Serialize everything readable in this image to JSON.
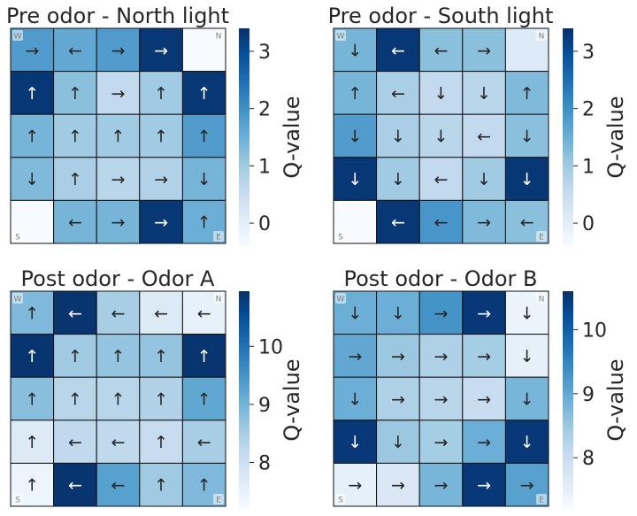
{
  "chart_data": [
    {
      "type": "heatmap",
      "title": "Pre odor - North light",
      "colormap": "Blues",
      "colorbar": {
        "label": "Q-value",
        "ticks": [
          0,
          1,
          2,
          3
        ],
        "range": [
          -0.4,
          3.4
        ]
      },
      "corner_labels": {
        "top_left": "W",
        "top_right": "N",
        "bottom_left": "S",
        "bottom_right": "E"
      },
      "values": [
        [
          1.8,
          1.6,
          1.8,
          3.3,
          -0.4
        ],
        [
          3.3,
          1.2,
          0.6,
          1.0,
          3.3
        ],
        [
          1.4,
          1.0,
          1.0,
          1.0,
          1.8
        ],
        [
          1.3,
          0.9,
          0.7,
          0.8,
          1.4
        ],
        [
          -0.4,
          1.4,
          1.4,
          3.3,
          1.5
        ]
      ],
      "arrows": [
        [
          "→",
          "←",
          "→",
          "→",
          ""
        ],
        [
          "↑",
          "↑",
          "→",
          "↑",
          "↑"
        ],
        [
          "↑",
          "↑",
          "↑",
          "↑",
          "↑"
        ],
        [
          "↓",
          "↑",
          "→",
          "→",
          "↓"
        ],
        [
          "",
          "←",
          "→",
          "→",
          "↑"
        ]
      ]
    },
    {
      "type": "heatmap",
      "title": "Pre odor - South light",
      "colormap": "Blues",
      "colorbar": {
        "label": "Q-value",
        "ticks": [
          0,
          1,
          2,
          3
        ],
        "range": [
          -0.4,
          3.4
        ]
      },
      "corner_labels": {
        "top_left": "W",
        "top_right": "N",
        "bottom_left": "S",
        "bottom_right": "E"
      },
      "values": [
        [
          1.4,
          3.3,
          1.2,
          1.2,
          0.1
        ],
        [
          1.4,
          0.9,
          0.6,
          0.7,
          1.3
        ],
        [
          1.8,
          0.9,
          0.7,
          0.6,
          1.2
        ],
        [
          3.3,
          1.0,
          0.6,
          1.0,
          3.3
        ],
        [
          -0.4,
          3.3,
          1.9,
          1.3,
          1.2
        ]
      ],
      "arrows": [
        [
          "↓",
          "←",
          "←",
          "→",
          ""
        ],
        [
          "↑",
          "←",
          "↓",
          "↓",
          "↑"
        ],
        [
          "↓",
          "↓",
          "↓",
          "←",
          "↓"
        ],
        [
          "↓",
          "↓",
          "←",
          "↓",
          "↓"
        ],
        [
          "",
          "←",
          "←",
          "→",
          "←"
        ]
      ]
    },
    {
      "type": "heatmap",
      "title": "Post odor - Odor A",
      "colormap": "Blues",
      "colorbar": {
        "label": "Q-value",
        "ticks": [
          8,
          9,
          10
        ],
        "range": [
          7.2,
          10.95
        ]
      },
      "corner_labels": {
        "top_left": "W",
        "top_right": "N",
        "bottom_left": "S",
        "bottom_right": "E"
      },
      "values": [
        [
          8.9,
          10.9,
          8.5,
          7.7,
          7.5
        ],
        [
          10.9,
          8.6,
          8.7,
          8.7,
          10.9
        ],
        [
          8.8,
          8.3,
          8.3,
          8.4,
          9.2
        ],
        [
          7.7,
          8.2,
          8.2,
          8.1,
          8.5
        ],
        [
          7.4,
          10.9,
          9.3,
          8.6,
          8.9
        ]
      ],
      "arrows": [
        [
          "↑",
          "←",
          "←",
          "←",
          "←"
        ],
        [
          "↑",
          "↑",
          "↑",
          "↑",
          "↑"
        ],
        [
          "↑",
          "↑",
          "↑",
          "↑",
          "↑"
        ],
        [
          "↑",
          "←",
          "←",
          "↑",
          "←"
        ],
        [
          "↑",
          "←",
          "←",
          "↑",
          "↑"
        ]
      ]
    },
    {
      "type": "heatmap",
      "title": "Post odor - Odor B",
      "colormap": "Blues",
      "colorbar": {
        "label": "Q-value",
        "ticks": [
          8,
          9,
          10
        ],
        "range": [
          7.2,
          10.6
        ]
      },
      "corner_labels": {
        "top_left": "W",
        "top_right": "N",
        "bottom_left": "S",
        "bottom_right": "E"
      },
      "values": [
        [
          8.9,
          8.9,
          9.3,
          10.5,
          7.4
        ],
        [
          9.0,
          8.5,
          8.3,
          8.4,
          7.5
        ],
        [
          8.9,
          8.3,
          8.2,
          8.0,
          8.8
        ],
        [
          10.5,
          8.5,
          8.4,
          8.9,
          10.5
        ],
        [
          7.5,
          7.7,
          8.8,
          10.5,
          9.1
        ]
      ],
      "arrows": [
        [
          "↓",
          "↓",
          "→",
          "→",
          "↓"
        ],
        [
          "→",
          "→",
          "→",
          "→",
          "↓"
        ],
        [
          "↓",
          "→",
          "→",
          "→",
          "↓"
        ],
        [
          "↓",
          "↓",
          "→",
          "→",
          "↓"
        ],
        [
          "→",
          "→",
          "→",
          "→",
          "→"
        ]
      ]
    }
  ]
}
